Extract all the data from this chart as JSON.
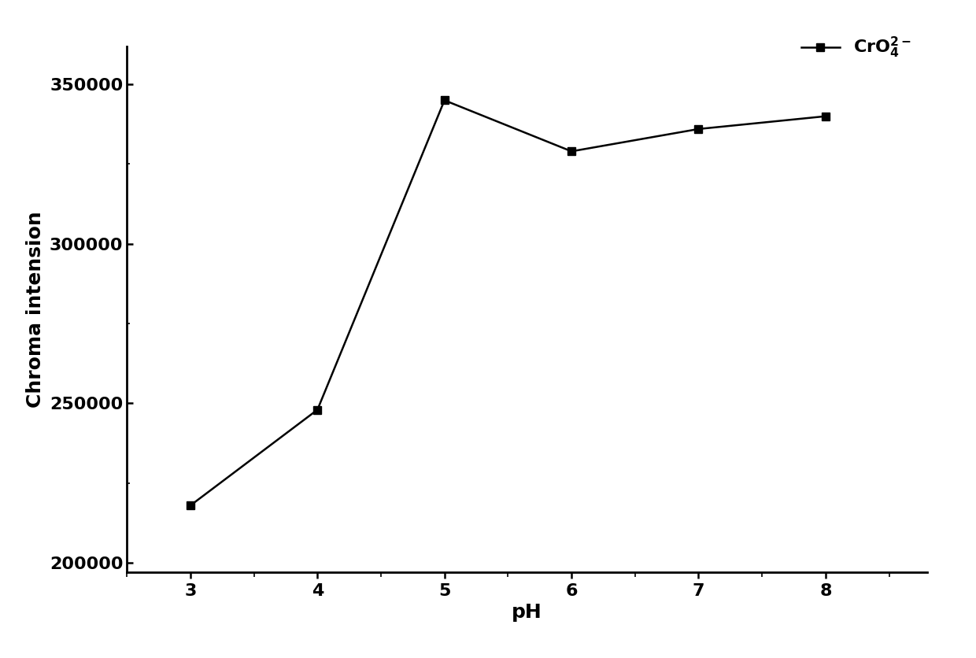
{
  "x": [
    3,
    4,
    5,
    6,
    7,
    8
  ],
  "y": [
    218000,
    248000,
    345000,
    329000,
    336000,
    340000
  ],
  "xlabel": "pH",
  "ylabel": "Chroma intension",
  "xlim": [
    2.5,
    8.8
  ],
  "ylim": [
    197000,
    362000
  ],
  "yticks": [
    200000,
    250000,
    300000,
    350000
  ],
  "xticks": [
    3,
    4,
    5,
    6,
    7,
    8
  ],
  "line_color": "#000000",
  "marker": "s",
  "marker_size": 7,
  "line_width": 1.8,
  "label_fontsize": 18,
  "tick_fontsize": 16,
  "legend_fontsize": 16,
  "background_color": "#ffffff"
}
